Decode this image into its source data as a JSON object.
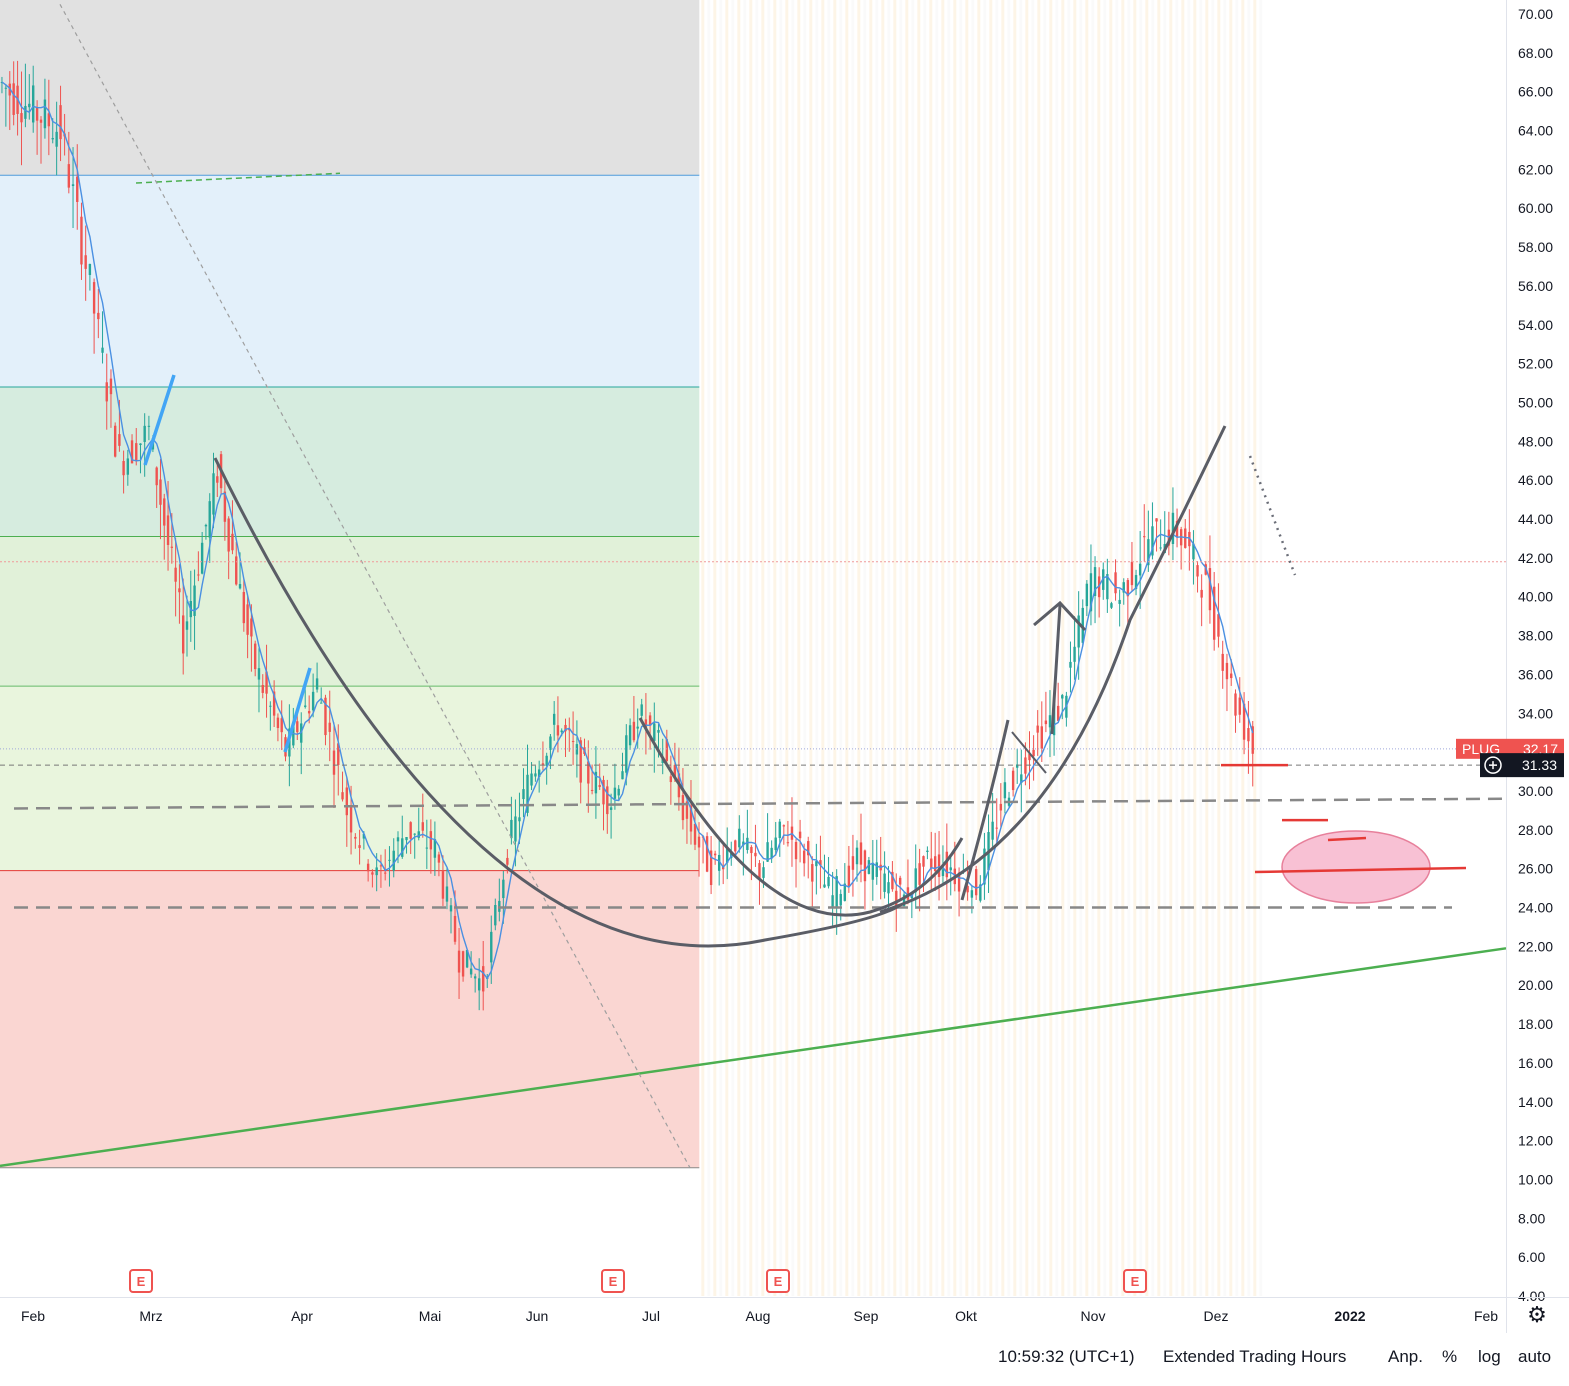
{
  "symbol": "PLUG",
  "last_price": "32.17",
  "crosshair_price": "31.33",
  "colors": {
    "up": "#26a69a",
    "down": "#ef5350",
    "ma": "#4a90e2",
    "trend_green": "#4caf50",
    "support_red": "#e53935",
    "highlight_pink": "#f8bbd0",
    "price_tag": "#ef5350"
  },
  "bottom_bar": {
    "time": "10:59:32 (UTC+1)",
    "session": "Extended Trading Hours",
    "adjust": "Anp.",
    "percent": "%",
    "log": "log",
    "auto": "auto"
  },
  "chart_data": {
    "type": "candlestick",
    "title": "",
    "y_axis": {
      "range": [
        4,
        70
      ],
      "ticks": [
        "4.00",
        "6.00",
        "8.00",
        "10.00",
        "12.00",
        "14.00",
        "16.00",
        "18.00",
        "20.00",
        "22.00",
        "24.00",
        "26.00",
        "28.00",
        "30.00",
        "32.00",
        "34.00",
        "36.00",
        "38.00",
        "40.00",
        "42.00",
        "44.00",
        "46.00",
        "48.00",
        "50.00",
        "52.00",
        "54.00",
        "56.00",
        "58.00",
        "60.00",
        "62.00",
        "64.00",
        "66.00",
        "68.00",
        "70.00"
      ]
    },
    "x_axis": {
      "labels": [
        "Feb",
        "Mrz",
        "Apr",
        "Mai",
        "Jun",
        "Jul",
        "Aug",
        "Sep",
        "Okt",
        "Nov",
        "Dez",
        "2022",
        "Feb"
      ]
    },
    "earnings_markers": [
      "E",
      "E",
      "E",
      "E"
    ],
    "fibonacci_levels": [
      61.7,
      50.8,
      43.1,
      35.4,
      25.9,
      10.6
    ],
    "horizontal_support_levels": [
      29.2,
      24.0
    ],
    "price_series_approx": [
      {
        "date": "2021-01-25",
        "close": 66.5
      },
      {
        "date": "2021-02-08",
        "close": 64.0
      },
      {
        "date": "2021-02-15",
        "close": 56.0
      },
      {
        "date": "2021-02-22",
        "close": 47.0
      },
      {
        "date": "2021-03-01",
        "close": 48.5
      },
      {
        "date": "2021-03-08",
        "close": 38.0
      },
      {
        "date": "2021-03-15",
        "close": 46.5
      },
      {
        "date": "2021-03-22",
        "close": 37.0
      },
      {
        "date": "2021-03-29",
        "close": 32.0
      },
      {
        "date": "2021-04-05",
        "close": 35.5
      },
      {
        "date": "2021-04-12",
        "close": 29.0
      },
      {
        "date": "2021-04-19",
        "close": 25.5
      },
      {
        "date": "2021-04-26",
        "close": 28.0
      },
      {
        "date": "2021-05-03",
        "close": 27.0
      },
      {
        "date": "2021-05-10",
        "close": 21.5
      },
      {
        "date": "2021-05-17",
        "close": 20.0
      },
      {
        "date": "2021-05-24",
        "close": 27.0
      },
      {
        "date": "2021-05-31",
        "close": 31.0
      },
      {
        "date": "2021-06-07",
        "close": 33.5
      },
      {
        "date": "2021-06-14",
        "close": 31.0
      },
      {
        "date": "2021-06-21",
        "close": 29.5
      },
      {
        "date": "2021-06-28",
        "close": 34.0
      },
      {
        "date": "2021-07-05",
        "close": 32.0
      },
      {
        "date": "2021-07-12",
        "close": 28.5
      },
      {
        "date": "2021-07-19",
        "close": 26.0
      },
      {
        "date": "2021-07-26",
        "close": 27.5
      },
      {
        "date": "2021-08-02",
        "close": 26.0
      },
      {
        "date": "2021-08-09",
        "close": 28.0
      },
      {
        "date": "2021-08-16",
        "close": 26.5
      },
      {
        "date": "2021-08-23",
        "close": 24.5
      },
      {
        "date": "2021-08-30",
        "close": 26.5
      },
      {
        "date": "2021-09-06",
        "close": 25.5
      },
      {
        "date": "2021-09-13",
        "close": 24.5
      },
      {
        "date": "2021-09-20",
        "close": 26.5
      },
      {
        "date": "2021-09-27",
        "close": 26.0
      },
      {
        "date": "2021-10-04",
        "close": 25.0
      },
      {
        "date": "2021-10-11",
        "close": 30.0
      },
      {
        "date": "2021-10-18",
        "close": 32.5
      },
      {
        "date": "2021-10-25",
        "close": 34.5
      },
      {
        "date": "2021-11-01",
        "close": 41.0
      },
      {
        "date": "2021-11-08",
        "close": 40.0
      },
      {
        "date": "2021-11-15",
        "close": 43.0
      },
      {
        "date": "2021-11-22",
        "close": 43.5
      },
      {
        "date": "2021-11-29",
        "close": 40.5
      },
      {
        "date": "2021-12-06",
        "close": 34.5
      },
      {
        "date": "2021-12-10",
        "close": 32.17
      }
    ]
  }
}
